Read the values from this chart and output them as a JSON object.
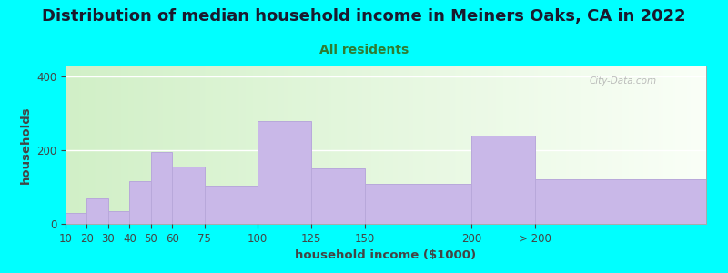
{
  "title": "Distribution of median household income in Meiners Oaks, CA in 2022",
  "subtitle": "All residents",
  "xlabel": "household income ($1000)",
  "ylabel": "households",
  "title_fontsize": 13,
  "subtitle_fontsize": 10,
  "label_fontsize": 9.5,
  "tick_fontsize": 8.5,
  "bar_labels": [
    "10",
    "20",
    "30",
    "40",
    "50",
    "60",
    "75",
    "100",
    "125",
    "150",
    "200",
    "> 200"
  ],
  "bar_values": [
    30,
    70,
    35,
    115,
    195,
    155,
    105,
    280,
    150,
    108,
    240,
    120
  ],
  "bar_positions": [
    10,
    20,
    30,
    40,
    50,
    60,
    75,
    100,
    125,
    150,
    200,
    230
  ],
  "bar_widths": [
    10,
    10,
    10,
    10,
    10,
    15,
    25,
    25,
    25,
    50,
    30,
    80
  ],
  "bar_color": "#c9b8e8",
  "bar_edgecolor": "#b8a8da",
  "ylim": [
    0,
    430
  ],
  "yticks": [
    0,
    200,
    400
  ],
  "background_color": "#00ffff",
  "plot_bg_color_left": "#d8f0c0",
  "plot_bg_color_right": "#f5fff5",
  "watermark": "City-Data.com",
  "title_color": "#1a1a2e",
  "subtitle_color": "#2e7d32",
  "axis_color": "#444444",
  "grid_color": "#e0e0e0"
}
